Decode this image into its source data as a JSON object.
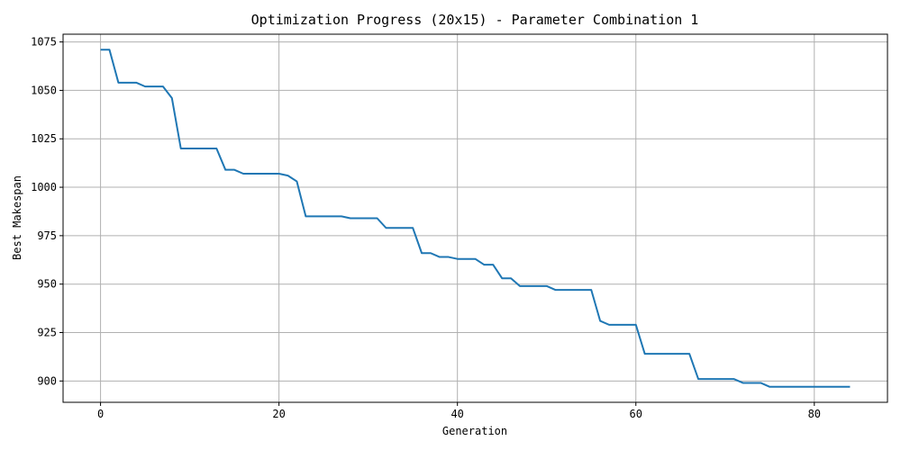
{
  "chart_data": {
    "type": "line",
    "title": "Optimization Progress (20x15) - Parameter Combination 1",
    "xlabel": "Generation",
    "ylabel": "Best Makespan",
    "xlim": [
      -4.2,
      88.2
    ],
    "ylim": [
      889,
      1079
    ],
    "xticks": [
      0,
      20,
      40,
      60,
      80
    ],
    "yticks": [
      900,
      925,
      950,
      975,
      1000,
      1025,
      1050,
      1075
    ],
    "grid": true,
    "line_color": "#1f77b4",
    "series": [
      {
        "x": [
          0,
          1,
          2,
          3,
          4,
          5,
          6,
          7,
          8,
          9,
          10,
          11,
          12,
          13,
          14,
          15,
          16,
          17,
          18,
          19,
          20,
          21,
          22,
          23,
          24,
          25,
          26,
          27,
          28,
          29,
          30,
          31,
          32,
          33,
          34,
          35,
          36,
          37,
          38,
          39,
          40,
          41,
          42,
          43,
          44,
          45,
          46,
          47,
          48,
          49,
          50,
          51,
          52,
          53,
          54,
          55,
          56,
          57,
          58,
          59,
          60,
          61,
          62,
          63,
          64,
          65,
          66,
          67,
          68,
          69,
          70,
          71,
          72,
          73,
          74,
          75,
          76,
          77,
          78,
          79,
          80,
          81,
          82,
          83,
          84
        ],
        "values": [
          1071,
          1071,
          1054,
          1054,
          1054,
          1052,
          1052,
          1052,
          1046,
          1020,
          1020,
          1020,
          1020,
          1020,
          1009,
          1009,
          1007,
          1007,
          1007,
          1007,
          1007,
          1006,
          1003,
          985,
          985,
          985,
          985,
          985,
          984,
          984,
          984,
          984,
          979,
          979,
          979,
          979,
          966,
          966,
          964,
          964,
          963,
          963,
          963,
          960,
          960,
          953,
          953,
          949,
          949,
          949,
          949,
          947,
          947,
          947,
          947,
          947,
          931,
          929,
          929,
          929,
          929,
          914,
          914,
          914,
          914,
          914,
          914,
          901,
          901,
          901,
          901,
          901,
          899,
          899,
          899,
          897,
          897,
          897,
          897,
          897,
          897,
          897,
          897,
          897,
          897
        ]
      }
    ]
  }
}
